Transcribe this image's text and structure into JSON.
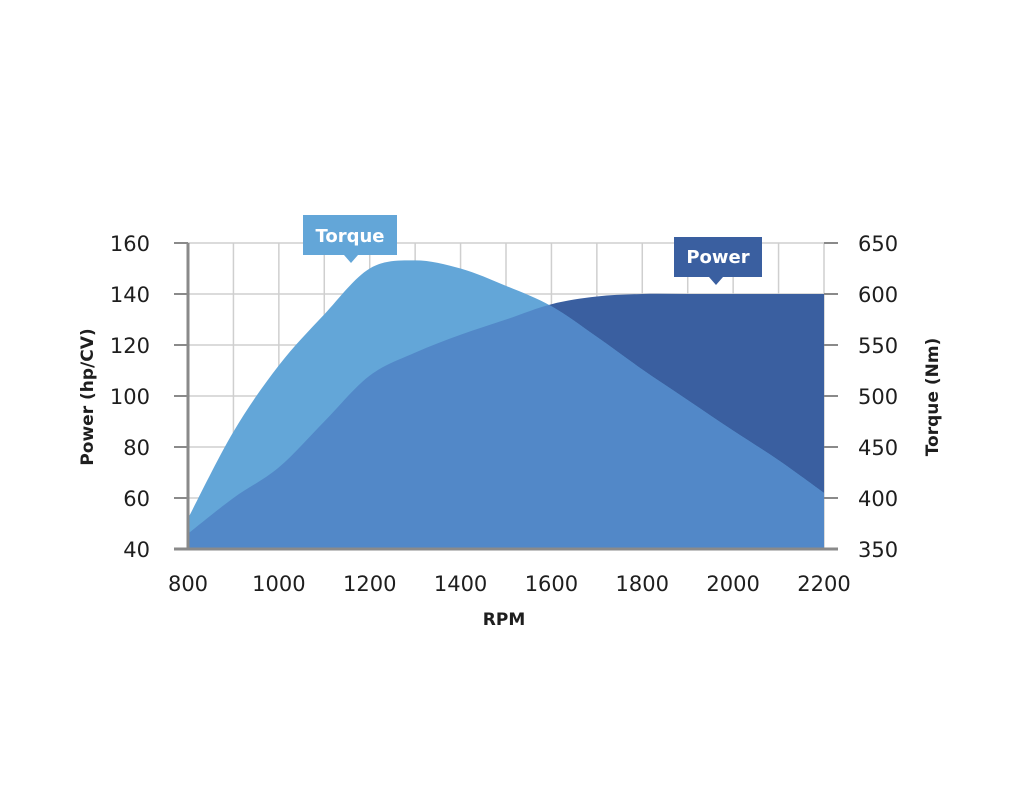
{
  "chart_data": {
    "type": "area",
    "x": [
      800,
      900,
      1000,
      1100,
      1200,
      1300,
      1400,
      1500,
      1600,
      1700,
      1800,
      1900,
      2000,
      2100,
      2200
    ],
    "xlim": [
      800,
      2200
    ],
    "xticks": [
      800,
      1000,
      1200,
      1400,
      1600,
      1800,
      2000,
      2200
    ],
    "xlabel": "RPM",
    "ylabel_left": "Power (hp/CV)",
    "ylabel_right": "Torque (Nm)",
    "ylim_left": [
      40,
      160
    ],
    "yticks_left": [
      40,
      60,
      80,
      100,
      120,
      140,
      160
    ],
    "ylim_right": [
      350,
      650
    ],
    "yticks_right": [
      350,
      400,
      450,
      500,
      550,
      600,
      650
    ],
    "grid": true,
    "series": [
      {
        "name": "Torque",
        "axis": "right",
        "color": "#63a6d8",
        "values": [
          380,
          465,
          530,
          580,
          625,
          633,
          625,
          608,
          588,
          558,
          526,
          496,
          466,
          437,
          405
        ]
      },
      {
        "name": "Power",
        "axis": "left",
        "color": "#3a5fa0",
        "values": [
          46,
          60,
          72,
          90,
          108,
          117,
          124,
          130,
          136,
          139,
          140,
          140,
          140,
          140,
          140
        ]
      }
    ],
    "overlap_color": "#5288c8"
  }
}
